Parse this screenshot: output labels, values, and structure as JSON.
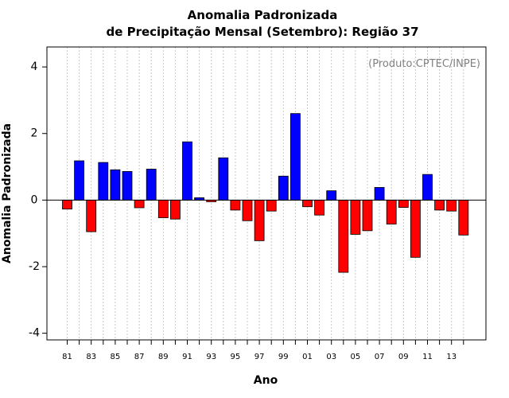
{
  "chart_data": {
    "type": "bar",
    "title_line1": "Anomalia Padronizada",
    "title_line2": "de Precipitação Mensal (Setembro): Região 37",
    "xlabel": "Ano",
    "ylabel": "Anomalia Padronizada",
    "credit": "(Produto:CPTEC/INPE)",
    "ylim": [
      -4.2,
      4.6
    ],
    "yticks": [
      -4,
      -2,
      0,
      2,
      4
    ],
    "xtick_labels": [
      "81",
      "83",
      "85",
      "87",
      "89",
      "91",
      "93",
      "95",
      "97",
      "99",
      "01",
      "03",
      "05",
      "07",
      "09",
      "11",
      "13"
    ],
    "grid": "vertical dotted lines at each year",
    "colors": {
      "positive": "#0000ff",
      "negative": "#ff0000",
      "grid": "#c8c8c8"
    },
    "categories": [
      "1981",
      "1982",
      "1983",
      "1984",
      "1985",
      "1986",
      "1987",
      "1988",
      "1989",
      "1990",
      "1991",
      "1992",
      "1993",
      "1994",
      "1995",
      "1996",
      "1997",
      "1998",
      "1999",
      "2000",
      "2001",
      "2002",
      "2003",
      "2004",
      "2005",
      "2006",
      "2007",
      "2008",
      "2009",
      "2010",
      "2011",
      "2012",
      "2013",
      "2014"
    ],
    "values": [
      -0.27,
      1.18,
      -0.95,
      1.13,
      0.91,
      0.86,
      -0.23,
      0.93,
      -0.53,
      -0.57,
      1.75,
      0.07,
      -0.05,
      1.27,
      -0.3,
      -0.62,
      -1.22,
      -0.33,
      0.72,
      2.6,
      -0.2,
      -0.45,
      0.28,
      -2.17,
      -1.03,
      -0.92,
      0.38,
      -0.72,
      -0.22,
      -1.72,
      0.77,
      -0.3,
      -0.33,
      -1.05
    ]
  }
}
